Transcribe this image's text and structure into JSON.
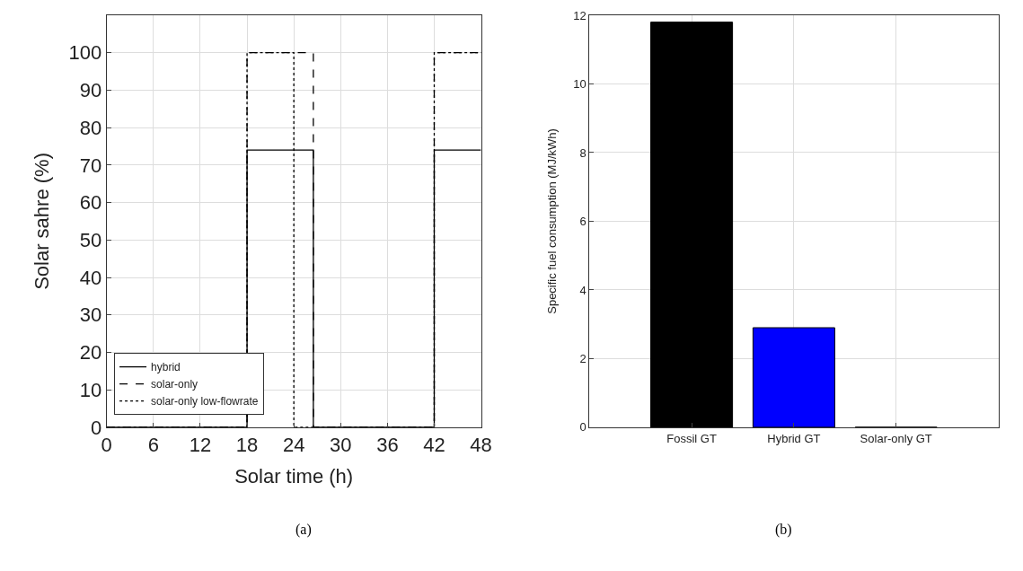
{
  "chart_data": [
    {
      "type": "step",
      "xlabel": "Solar time (h)",
      "ylabel": "Solar sahre (%)",
      "xlim": [
        0,
        48
      ],
      "xticks": [
        0,
        6,
        12,
        18,
        24,
        30,
        36,
        42,
        48
      ],
      "ylim": [
        0,
        110
      ],
      "yticks": [
        0,
        10,
        20,
        30,
        40,
        50,
        60,
        70,
        80,
        90,
        100
      ],
      "grid": true,
      "legend": "bottom left",
      "annotations": [
        "(a)"
      ],
      "series": [
        {
          "name": "hybrid",
          "color": "#000000",
          "line_style": "solid",
          "x": [
            0,
            18,
            26.5,
            42,
            48
          ],
          "values": [
            0,
            74,
            0,
            74,
            74
          ]
        },
        {
          "name": "solar-only",
          "color": "#000000",
          "line_style": "dashed",
          "x": [
            0,
            18,
            26.5,
            42,
            48
          ],
          "values": [
            0,
            100,
            0,
            100,
            100
          ]
        },
        {
          "name": "solar-only low-flowrate",
          "color": "#000000",
          "line_style": "dotted",
          "x": [
            0,
            18,
            24,
            42,
            48
          ],
          "values": [
            0,
            100,
            0,
            100,
            100
          ]
        }
      ]
    },
    {
      "type": "bar",
      "ylabel": "Specific fuel consumption (MJ/kWh)",
      "categories": [
        "Fossil GT",
        "Hybrid GT",
        "Solar-only GT"
      ],
      "values": [
        11.8,
        2.9,
        0
      ],
      "colors": [
        "#000000",
        "#0000ff",
        "#000000"
      ],
      "ylim": [
        0,
        12
      ],
      "yticks": [
        0,
        2,
        4,
        6,
        8,
        10,
        12
      ],
      "grid": true,
      "annotations": [
        "(b)"
      ]
    }
  ]
}
